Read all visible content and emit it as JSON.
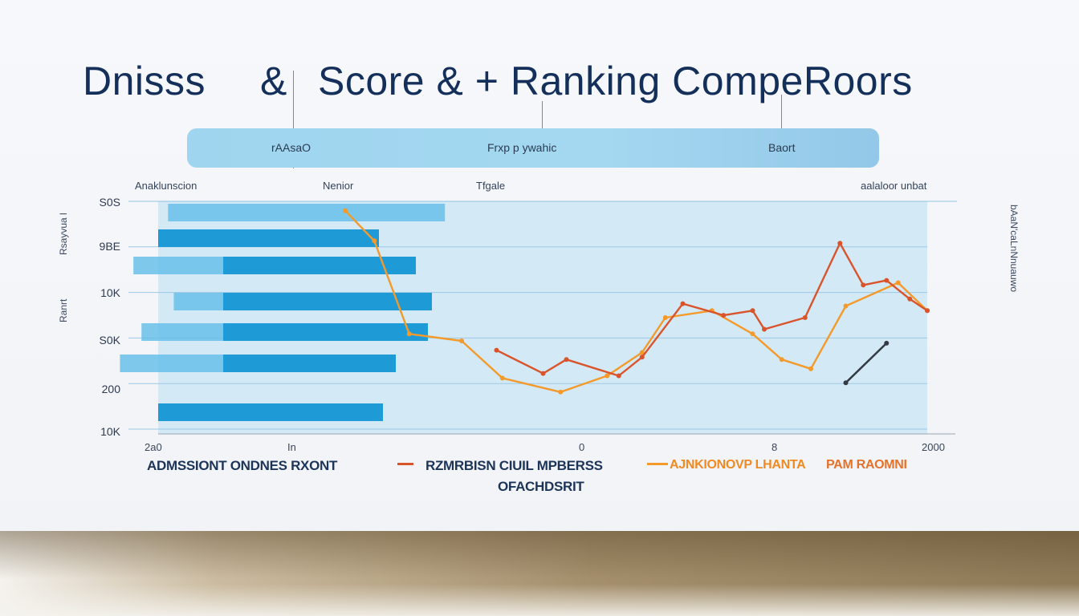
{
  "title": {
    "part1": "Dnisss",
    "part2": "&",
    "part3": "Score & + Ranking CompeRoors"
  },
  "header_pill": {
    "labels": [
      "rAAsaO",
      "Frxp p ywahic",
      "Baort"
    ]
  },
  "column_headers": [
    "Anaklunscion",
    "Nenior",
    "Tfgale",
    "aalaloor unbat"
  ],
  "left_side_text": [
    "Rsayvua l",
    "Ranrt"
  ],
  "right_side_text": "bAaN'caLnNnuauwo",
  "xaxis": {
    "tick_labels": [
      "2a0",
      "In",
      "0",
      "8",
      "2000"
    ]
  },
  "legend": {
    "item1": "ADMSSIONT ONDNES RXONT",
    "item2": "RZMRBISN CIUIL MPBERSS",
    "item2b": "OFACHDSRIT",
    "item3": "AJNKIONOVP LHANTA",
    "item3b": "PAM RAOMNI"
  },
  "colors": {
    "bar_primary": "#1e9ad7",
    "bar_light": "#67bfe9",
    "line_orange": "#f39a2b",
    "line_red": "#d9542b",
    "line_dark": "#333a44",
    "plot_bg": "#d3e9f6",
    "title": "#14305a"
  },
  "chart_data": {
    "type": "bar+line",
    "yaxis": {
      "tick_labels": [
        "S0S",
        "9BE",
        "10K",
        "S0K",
        "200",
        "10K"
      ]
    },
    "bars": {
      "series": [
        {
          "name": "ADMSSIONT ONDNES RXONT",
          "color": "#1e9ad7",
          "values": [
            0.55,
            0.48,
            0.52,
            0.51,
            0.43,
            0.56
          ]
        },
        {
          "name": "ADMSSIONT ONDNES RXONT",
          "color": "#67bfe9",
          "values": [
            0.36,
            0.25,
            0.1,
            0.22,
            0.3,
            0.0
          ]
        }
      ]
    },
    "lines": [
      {
        "name": "AJNKIONOVP LHANTA",
        "color": "#f39a2b",
        "points": [
          [
            0.0,
            0.96
          ],
          [
            0.05,
            0.83
          ],
          [
            0.11,
            0.43
          ],
          [
            0.2,
            0.4
          ],
          [
            0.27,
            0.24
          ],
          [
            0.37,
            0.18
          ],
          [
            0.45,
            0.25
          ],
          [
            0.51,
            0.35
          ],
          [
            0.55,
            0.5
          ],
          [
            0.63,
            0.53
          ],
          [
            0.7,
            0.43
          ],
          [
            0.75,
            0.32
          ],
          [
            0.8,
            0.28
          ],
          [
            0.86,
            0.55
          ],
          [
            0.95,
            0.65
          ],
          [
            1.0,
            0.53
          ]
        ]
      },
      {
        "name": "RZMRBISN CIUIL MPBERSS",
        "color": "#d9542b",
        "points": [
          [
            0.26,
            0.36
          ],
          [
            0.34,
            0.26
          ],
          [
            0.38,
            0.32
          ],
          [
            0.47,
            0.25
          ],
          [
            0.51,
            0.33
          ],
          [
            0.58,
            0.56
          ],
          [
            0.65,
            0.51
          ],
          [
            0.7,
            0.53
          ],
          [
            0.72,
            0.45
          ],
          [
            0.79,
            0.5
          ],
          [
            0.85,
            0.82
          ],
          [
            0.89,
            0.64
          ],
          [
            0.93,
            0.66
          ],
          [
            0.97,
            0.58
          ],
          [
            1.0,
            0.53
          ]
        ]
      },
      {
        "name": "OFACHDSRIT",
        "color": "#333a44",
        "points": [
          [
            0.86,
            0.22
          ],
          [
            0.93,
            0.39
          ]
        ]
      }
    ]
  }
}
